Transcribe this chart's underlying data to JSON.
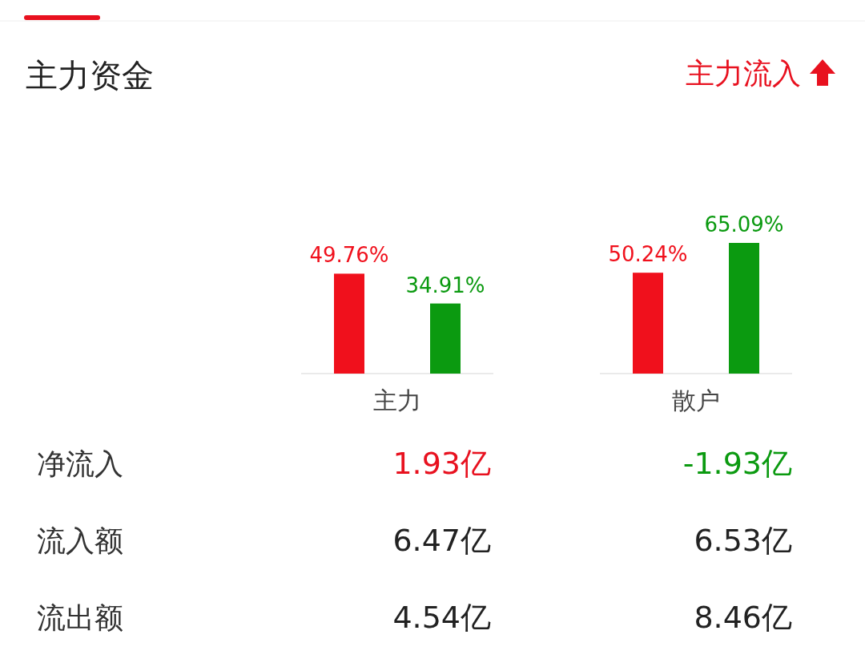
{
  "chart_data": [
    {
      "type": "bar",
      "title": "主力资金",
      "annotations": [
        "主力流入"
      ],
      "categories": [
        "主力",
        "散户"
      ],
      "series": [
        {
          "color": "#f0101c",
          "values": [
            49.76,
            50.24
          ],
          "value_labels": [
            "49.76%",
            "50.24%"
          ]
        },
        {
          "color": "#0b9a10",
          "values": [
            34.91,
            65.09
          ],
          "value_labels": [
            "34.91%",
            "65.09%"
          ]
        }
      ]
    },
    {
      "type": "other",
      "annotations": [
        "净流入",
        "1.93亿",
        "-1.93亿",
        "流入额",
        "6.47亿",
        "6.53亿",
        "流出额",
        "4.54亿",
        "8.46亿"
      ],
      "colors": [
        "#333333",
        "#e8111f",
        "#0b9a10",
        "#333333",
        "#222222",
        "#222222",
        "#333333",
        "#222222",
        "#222222"
      ]
    }
  ]
}
